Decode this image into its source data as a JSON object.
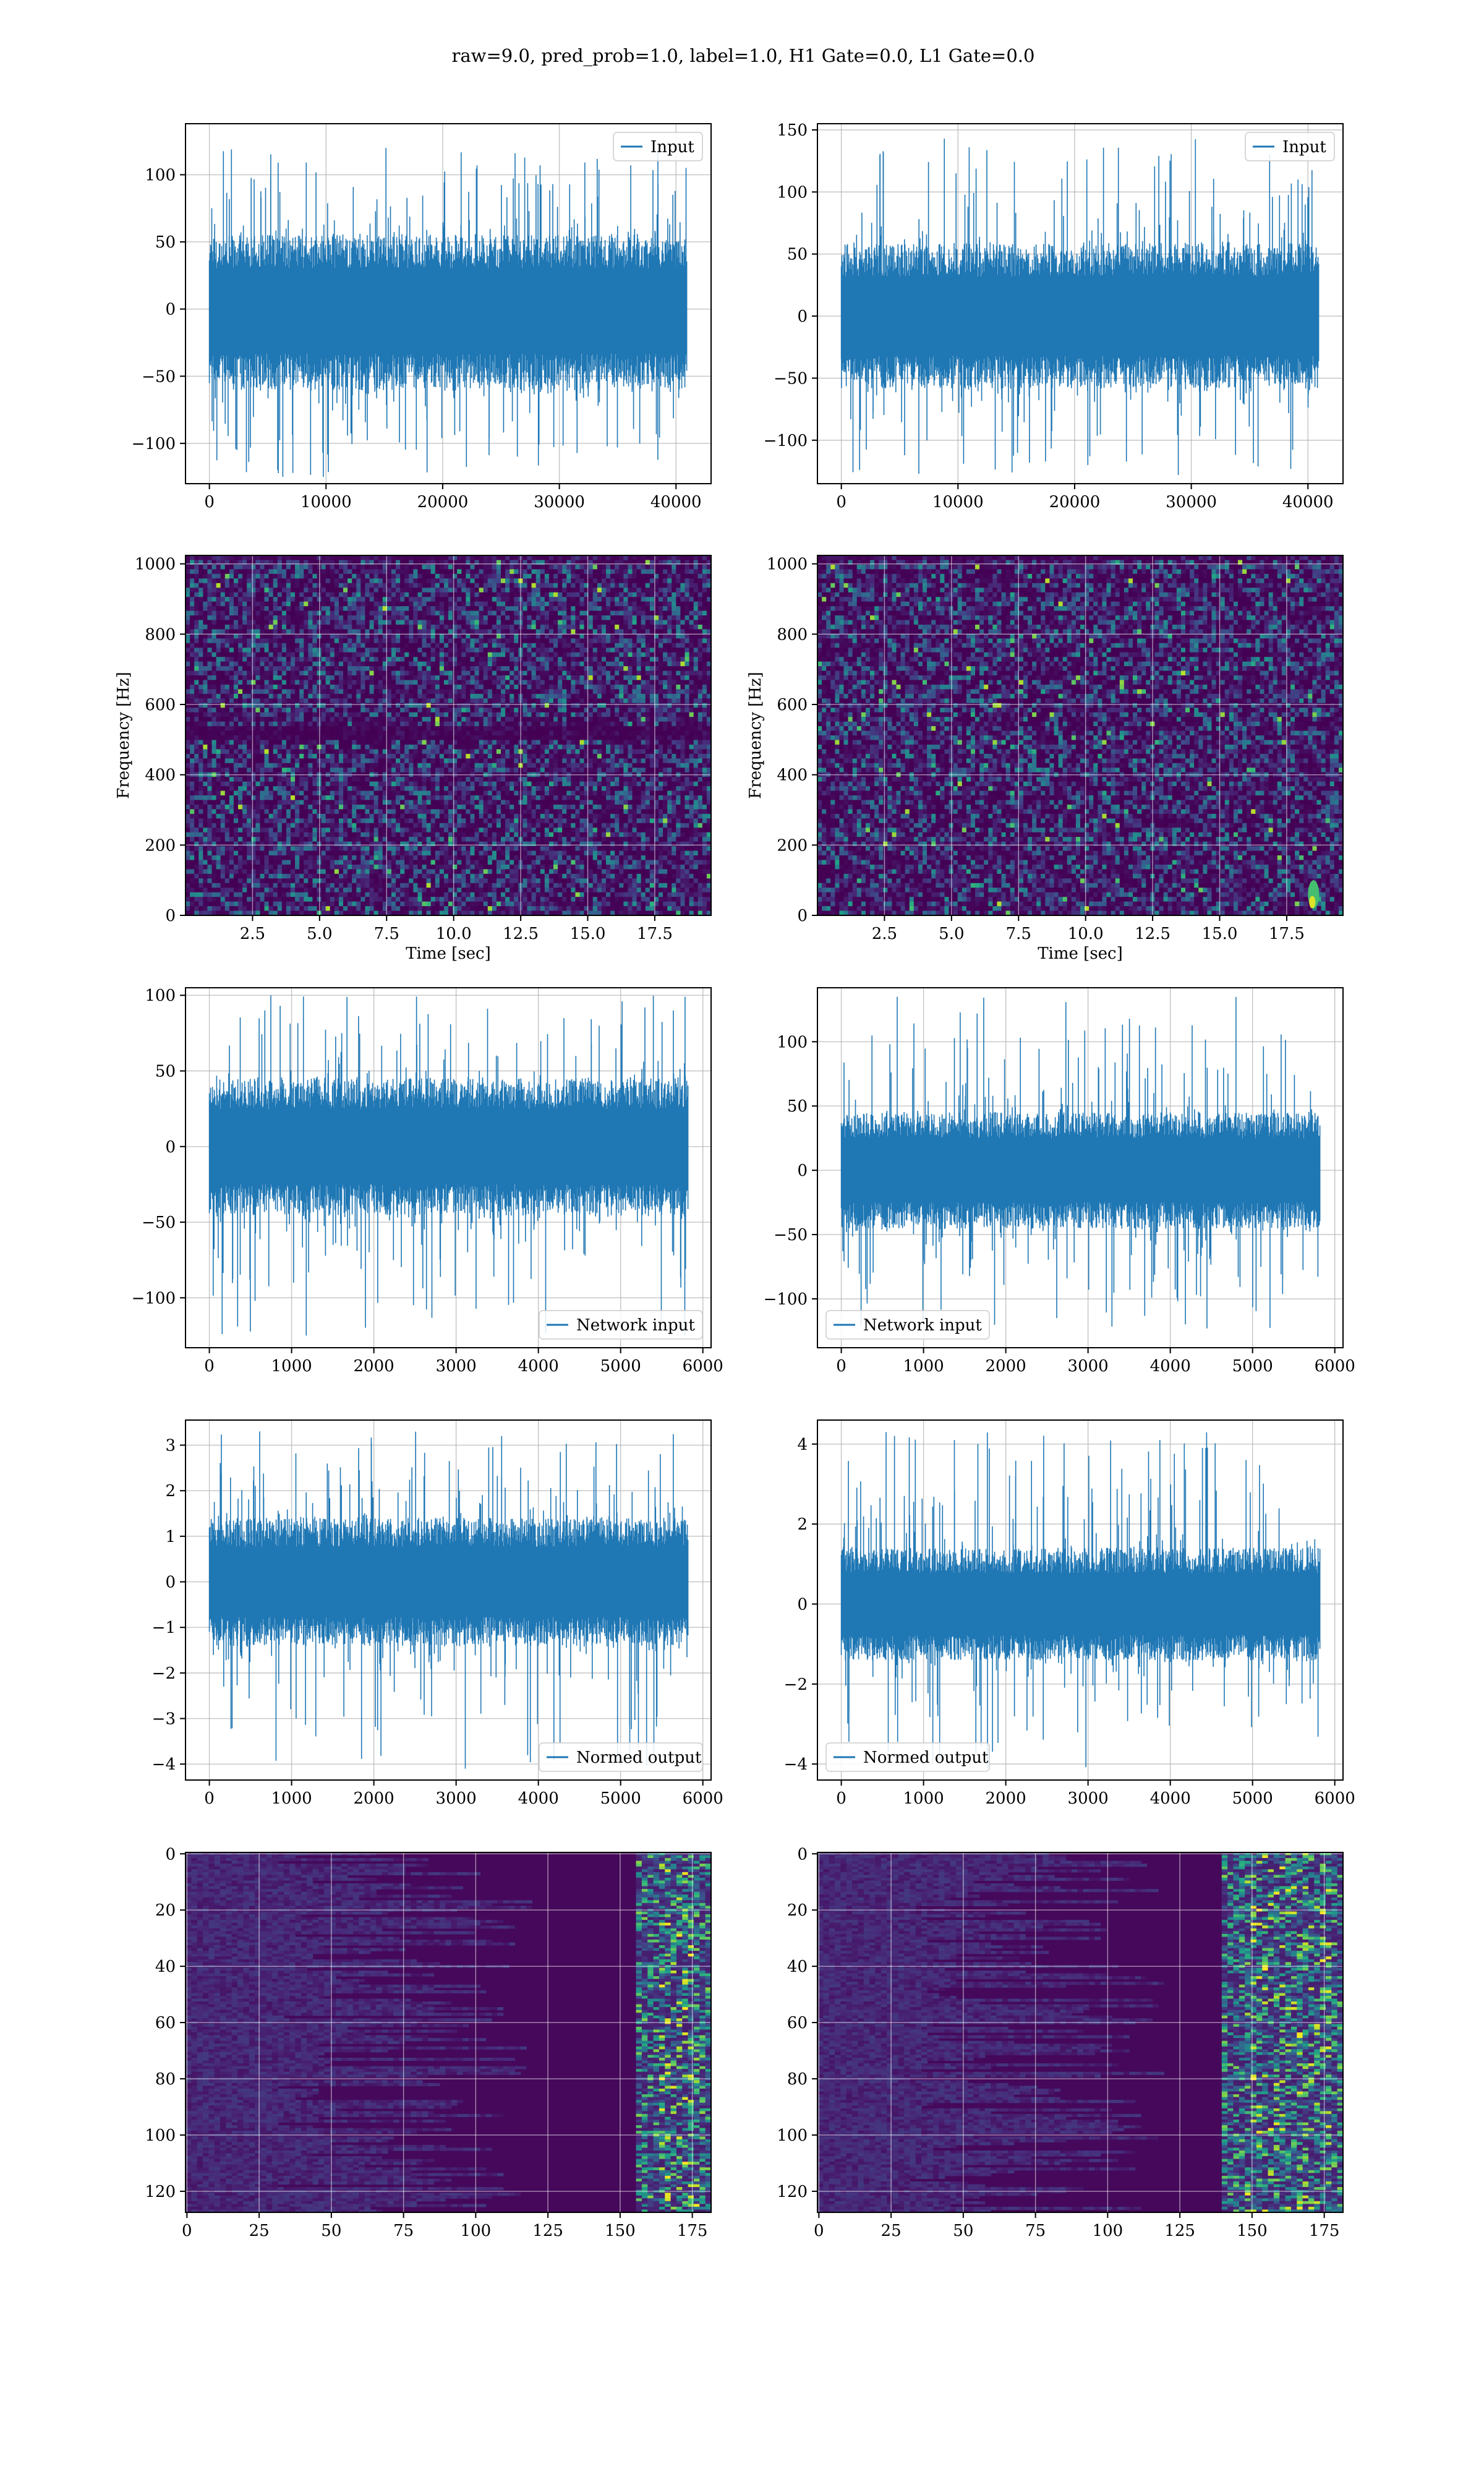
{
  "figure_title": "raw=9.0, pred_prob=1.0, label=1.0, H1 Gate=0.0, L1 Gate=0.0",
  "colors": {
    "line": "#1f77b4",
    "viridis_dark": "#440154",
    "viridis_blue": "#3b528b",
    "viridis_teal": "#21918c",
    "viridis_green": "#5ec962",
    "viridis_yellow": "#fde725",
    "grid": "#b0b0b0"
  },
  "chart_data": [
    {
      "id": "h1-input",
      "type": "line",
      "series": [
        {
          "name": "Input"
        }
      ],
      "legend_location": "upper right",
      "xlim": [
        -2048,
        43008
      ],
      "ylim": [
        -130,
        138
      ],
      "xticks": [
        0,
        10000,
        20000,
        30000,
        40000
      ],
      "yticks": [
        -100,
        -50,
        0,
        50,
        100
      ],
      "n_samples": 40960,
      "body_amplitude": [
        -60,
        55
      ],
      "peak_range": [
        -125,
        120
      ],
      "grid": true
    },
    {
      "id": "l1-input",
      "type": "line",
      "series": [
        {
          "name": "Input"
        }
      ],
      "legend_location": "upper right",
      "xlim": [
        -2048,
        43008
      ],
      "ylim": [
        -135,
        155
      ],
      "xticks": [
        0,
        10000,
        20000,
        30000,
        40000
      ],
      "yticks": [
        -100,
        -50,
        0,
        50,
        100,
        150
      ],
      "n_samples": 40960,
      "body_amplitude": [
        -58,
        58
      ],
      "peak_range": [
        -128,
        143
      ],
      "grid": true
    },
    {
      "id": "h1-spectrogram",
      "type": "heatmap",
      "xlabel": "Time [sec]",
      "ylabel": "Frequency [Hz]",
      "xlim": [
        0.0,
        19.6
      ],
      "ylim": [
        0,
        1024
      ],
      "xticks": [
        2.5,
        5.0,
        7.5,
        10.0,
        12.5,
        15.0,
        17.5
      ],
      "xtick_labels": [
        "2.5",
        "5.0",
        "7.5",
        "10.0",
        "12.5",
        "15.0",
        "17.5"
      ],
      "yticks": [
        0,
        200,
        400,
        600,
        800,
        1000
      ],
      "colormap": "viridis",
      "grid": true
    },
    {
      "id": "l1-spectrogram",
      "type": "heatmap",
      "xlabel": "Time [sec]",
      "ylabel": "Frequency [Hz]",
      "xlim": [
        0.0,
        19.6
      ],
      "ylim": [
        0,
        1024
      ],
      "xticks": [
        2.5,
        5.0,
        7.5,
        10.0,
        12.5,
        15.0,
        17.5
      ],
      "xtick_labels": [
        "2.5",
        "5.0",
        "7.5",
        "10.0",
        "12.5",
        "15.0",
        "17.5"
      ],
      "yticks": [
        0,
        200,
        400,
        600,
        800,
        1000
      ],
      "colormap": "viridis",
      "bright_feature": {
        "time": 18.5,
        "frequency_range": [
          20,
          100
        ]
      },
      "grid": true
    },
    {
      "id": "h1-network-input",
      "type": "line",
      "series": [
        {
          "name": "Network input"
        }
      ],
      "legend_location": "lower right",
      "xlim": [
        -290,
        6100
      ],
      "ylim": [
        -133,
        105
      ],
      "xticks": [
        0,
        1000,
        2000,
        3000,
        4000,
        5000,
        6000
      ],
      "yticks": [
        -100,
        -50,
        0,
        50,
        100
      ],
      "n_samples": 5820,
      "body_amplitude": [
        -45,
        45
      ],
      "peak_range": [
        -125,
        100
      ],
      "grid": true
    },
    {
      "id": "l1-network-input",
      "type": "line",
      "series": [
        {
          "name": "Network input"
        }
      ],
      "legend_location": "lower left",
      "xlim": [
        -290,
        6100
      ],
      "ylim": [
        -138,
        142
      ],
      "xticks": [
        0,
        1000,
        2000,
        3000,
        4000,
        5000,
        6000
      ],
      "yticks": [
        -100,
        -50,
        0,
        50,
        100
      ],
      "n_samples": 5820,
      "body_amplitude": [
        -45,
        45
      ],
      "peak_range": [
        -123,
        135
      ],
      "grid": true
    },
    {
      "id": "h1-normed-output",
      "type": "line",
      "series": [
        {
          "name": "Normed output"
        }
      ],
      "legend_location": "lower right",
      "xlim": [
        -290,
        6100
      ],
      "ylim": [
        -4.35,
        3.55
      ],
      "xticks": [
        0,
        1000,
        2000,
        3000,
        4000,
        5000,
        6000
      ],
      "yticks": [
        -4,
        -3,
        -2,
        -1,
        0,
        1,
        2,
        3
      ],
      "n_samples": 5820,
      "body_amplitude": [
        -1.4,
        1.4
      ],
      "peak_range": [
        -4.1,
        3.3
      ],
      "grid": true
    },
    {
      "id": "l1-normed-output",
      "type": "line",
      "series": [
        {
          "name": "Normed output"
        }
      ],
      "legend_location": "lower left",
      "xlim": [
        -290,
        6100
      ],
      "ylim": [
        -4.4,
        4.6
      ],
      "xticks": [
        0,
        1000,
        2000,
        3000,
        4000,
        5000,
        6000
      ],
      "yticks": [
        -4,
        -2,
        0,
        2,
        4
      ],
      "n_samples": 5820,
      "body_amplitude": [
        -1.4,
        1.4
      ],
      "peak_range": [
        -4.1,
        4.3
      ],
      "grid": true
    },
    {
      "id": "h1-feature-map",
      "type": "heatmap",
      "xlim": [
        -0.5,
        181.5
      ],
      "ylim": [
        127.5,
        -0.5
      ],
      "xticks": [
        0,
        25,
        50,
        75,
        100,
        125,
        150,
        175
      ],
      "yticks": [
        0,
        20,
        40,
        60,
        80,
        100,
        120
      ],
      "colormap": "viridis",
      "bright_columns": [
        155,
        181
      ],
      "grid": true
    },
    {
      "id": "l1-feature-map",
      "type": "heatmap",
      "xlim": [
        -0.5,
        181.5
      ],
      "ylim": [
        127.5,
        -0.5
      ],
      "xticks": [
        0,
        25,
        50,
        75,
        100,
        125,
        150,
        175
      ],
      "yticks": [
        0,
        20,
        40,
        60,
        80,
        100,
        120
      ],
      "colormap": "viridis",
      "bright_columns": [
        140,
        181
      ],
      "grid": true
    }
  ]
}
